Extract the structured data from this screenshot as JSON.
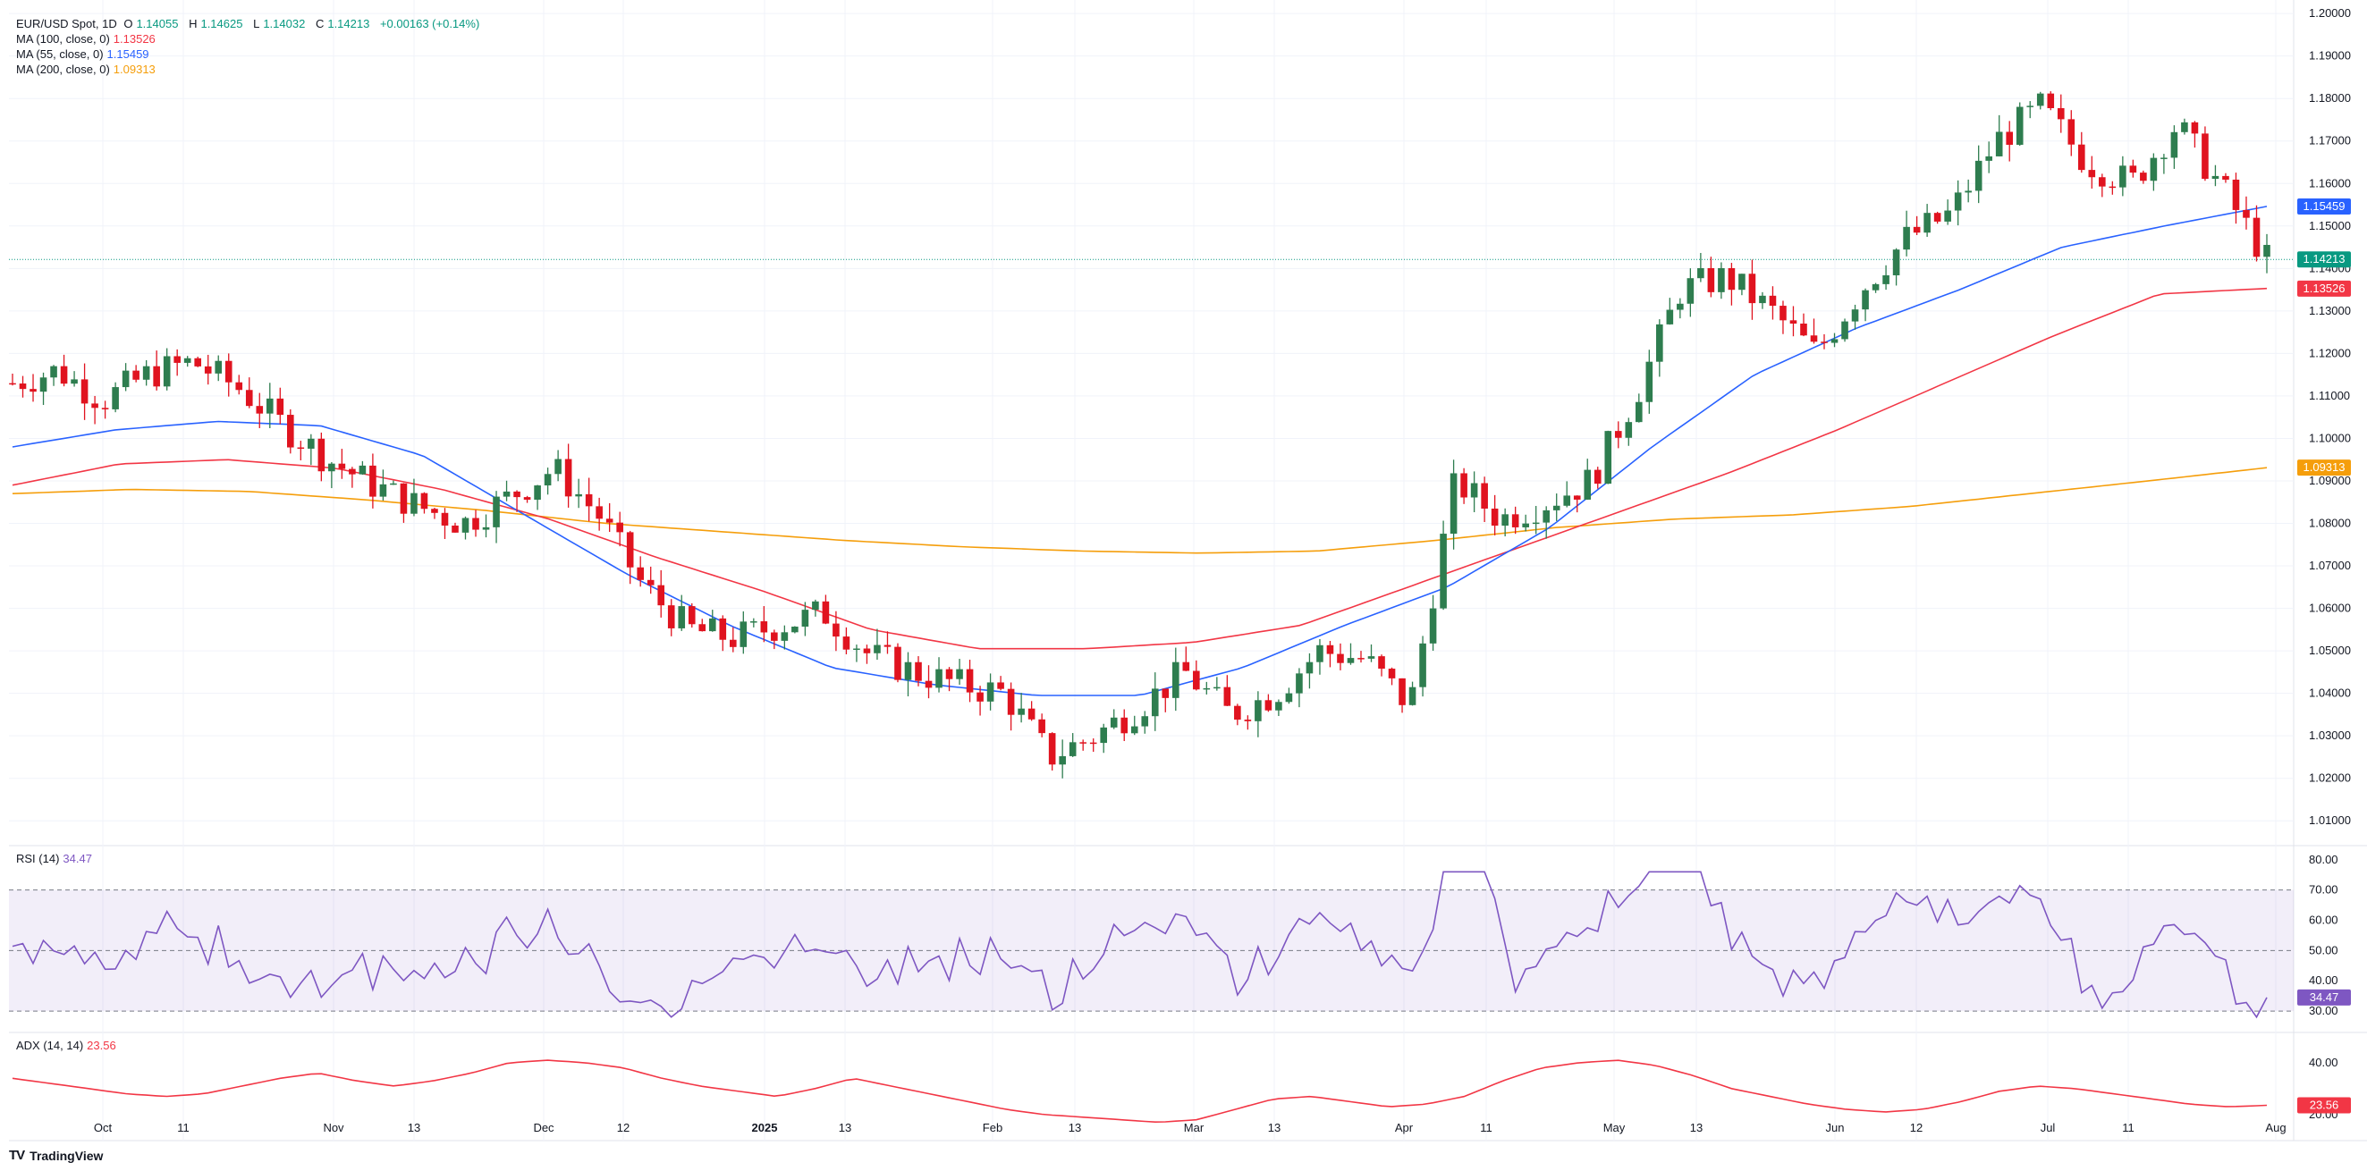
{
  "header": {
    "symbol": "EUR/USD Spot, 1D",
    "open_label": "O",
    "open": "1.14055",
    "high_label": "H",
    "high": "1.14625",
    "low_label": "L",
    "low": "1.14032",
    "close_label": "C",
    "close": "1.14213",
    "change": "+0.00163 (+0.14%)"
  },
  "indicators": {
    "ma100": {
      "label": "MA (100, close, 0)",
      "value": "1.13526",
      "color": "#f23645"
    },
    "ma55": {
      "label": "MA (55, close, 0)",
      "value": "1.15459",
      "color": "#2962ff"
    },
    "ma200": {
      "label": "MA (200, close, 0)",
      "value": "1.09313",
      "color": "#f59e0b"
    },
    "rsi": {
      "label": "RSI (14)",
      "value": "34.47",
      "color": "#7e57c2"
    },
    "adx": {
      "label": "ADX (14, 14)",
      "value": "23.56",
      "color": "#f23645"
    }
  },
  "colors": {
    "up": "#089981",
    "down": "#f23645",
    "candle_up": "#2e7d4f",
    "candle_down": "#e0131f"
  },
  "branding": {
    "name": "TradingView"
  },
  "chart_data": {
    "type": "candlestick",
    "price_axis": {
      "ticks": [
        "1.01000",
        "1.02000",
        "1.03000",
        "1.04000",
        "1.05000",
        "1.06000",
        "1.07000",
        "1.08000",
        "1.09000",
        "1.10000",
        "1.11000",
        "1.12000",
        "1.13000",
        "1.14000",
        "1.15000",
        "1.16000",
        "1.17000",
        "1.18000",
        "1.19000",
        "1.20000"
      ],
      "range": [
        1.005,
        1.2015
      ]
    },
    "time_axis": [
      "Oct",
      "11",
      "Nov",
      "13",
      "Dec",
      "12",
      "2025",
      "13",
      "Feb",
      "13",
      "Mar",
      "13",
      "Apr",
      "11",
      "May",
      "13",
      "Jun",
      "12",
      "Jul",
      "11",
      "Aug"
    ],
    "last_price": "1.14213",
    "series_closes_approx": [
      1.113,
      1.116,
      1.109,
      1.115,
      1.118,
      1.112,
      1.103,
      1.095,
      1.089,
      1.084,
      1.08,
      1.086,
      1.093,
      1.082,
      1.065,
      1.055,
      1.053,
      1.056,
      1.059,
      1.049,
      1.045,
      1.042,
      1.04,
      1.025,
      1.03,
      1.037,
      1.045,
      1.035,
      1.04,
      1.05,
      1.048,
      1.037,
      1.09,
      1.081,
      1.085,
      1.09,
      1.11,
      1.135,
      1.138,
      1.13,
      1.12,
      1.135,
      1.147,
      1.153,
      1.17,
      1.178,
      1.165,
      1.16,
      1.174,
      1.159,
      1.1421
    ],
    "rsi_axis": [
      "30.00",
      "40.00",
      "50.00",
      "60.00",
      "70.00",
      "80.00"
    ],
    "rsi_levels": [
      30,
      50,
      70
    ],
    "rsi_last": "34.47",
    "adx_axis": [
      "20.00",
      "40.00"
    ],
    "adx_last": "23.56"
  }
}
